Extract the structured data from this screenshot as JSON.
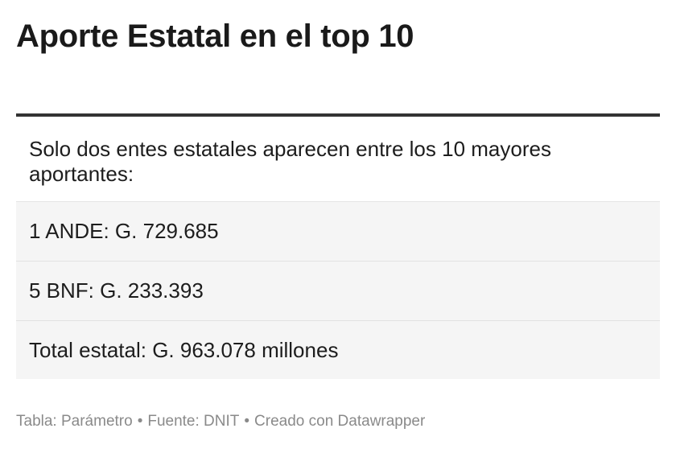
{
  "title": "Aporte Estatal en el top 10",
  "table": {
    "header": "Solo dos entes estatales aparecen entre los 10 mayores aportantes:",
    "rows": [
      "1 ANDE: G. 729.685",
      "5 BNF: G. 233.393",
      "Total estatal: G. 963.078 millones"
    ]
  },
  "footer": {
    "table_credit": "Tabla: Parámetro",
    "separator": "•",
    "source": "Fuente: DNIT",
    "created_with": "Creado con Datawrapper"
  }
}
